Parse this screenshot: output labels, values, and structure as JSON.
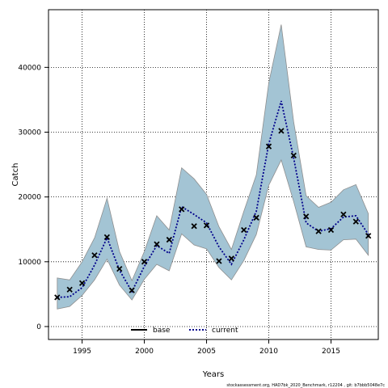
{
  "chart_data": {
    "type": "line",
    "title": "",
    "xlabel": "Years",
    "ylabel": "Catch",
    "xlim": [
      1992.3,
      2018.8
    ],
    "ylim": [
      -2000,
      48900
    ],
    "x_ticks": [
      1995,
      2000,
      2005,
      2010,
      2015
    ],
    "y_ticks": [
      0,
      10000,
      20000,
      30000,
      40000
    ],
    "grid": true,
    "legend_position": "bottom-center",
    "x": [
      1993,
      1994,
      1995,
      1996,
      1997,
      1998,
      1999,
      2000,
      2001,
      2002,
      2003,
      2004,
      2005,
      2006,
      2007,
      2008,
      2009,
      2010,
      2011,
      2012,
      2013,
      2014,
      2015,
      2016,
      2017,
      2018
    ],
    "series": [
      {
        "name": "base",
        "style": "x-markers",
        "values": [
          4500,
          5700,
          6700,
          11000,
          13800,
          8900,
          5600,
          10000,
          12700,
          13400,
          18100,
          15500,
          15600,
          10100,
          10500,
          14900,
          16800,
          27800,
          30200,
          26400,
          17000,
          14700,
          14900,
          17300,
          16200,
          14000
        ]
      },
      {
        "name": "current",
        "style": "dotted",
        "values": [
          4500,
          4600,
          6000,
          9500,
          13700,
          8700,
          5400,
          9300,
          12500,
          11300,
          18500,
          17300,
          16000,
          12300,
          9600,
          13400,
          17800,
          28200,
          34800,
          26000,
          16000,
          14700,
          15100,
          16900,
          17100,
          14200
        ]
      }
    ],
    "band": {
      "lower": [
        2700,
        3100,
        4800,
        7200,
        10400,
        6400,
        4100,
        7300,
        9600,
        8600,
        14300,
        12600,
        12000,
        9100,
        7200,
        10200,
        14200,
        21800,
        25700,
        19300,
        12300,
        11900,
        11800,
        13400,
        13500,
        11000
      ],
      "upper": [
        7500,
        7200,
        10000,
        13700,
        19800,
        11600,
        7100,
        11600,
        17100,
        14900,
        24500,
        22800,
        20400,
        15400,
        11900,
        17800,
        23400,
        37600,
        46600,
        31600,
        20200,
        18400,
        19200,
        21100,
        21900,
        17400
      ]
    },
    "colors": {
      "band_fill": "#a3c4d4",
      "band_edge": "#8e8e8e",
      "line": "#00008b",
      "marker": "#000000"
    }
  },
  "footer_text": "stockassessment.org, HAD7bk_2020_Benchmark, r12204 , git: b7bbb5048e7c"
}
